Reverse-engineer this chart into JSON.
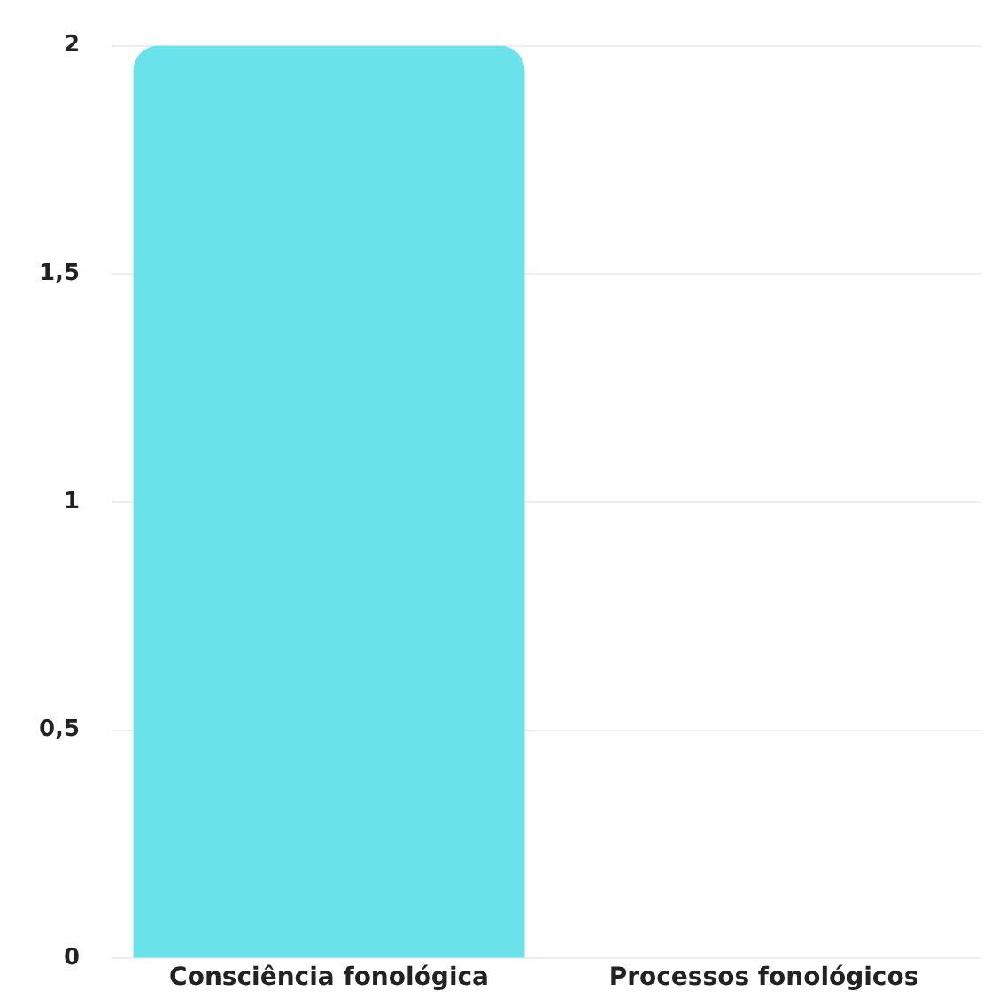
{
  "chart_data": {
    "type": "bar",
    "categories": [
      "Consciência fonológica",
      "Processos fonológicos"
    ],
    "values": [
      2,
      0
    ],
    "color": "#6ae2e9",
    "ylim": [
      0,
      2
    ],
    "yticks": [
      0,
      {
        "value": 0.5,
        "label": "0,5"
      },
      1,
      {
        "value": 1.5,
        "label": "1,5"
      },
      2
    ],
    "grid": "y"
  }
}
